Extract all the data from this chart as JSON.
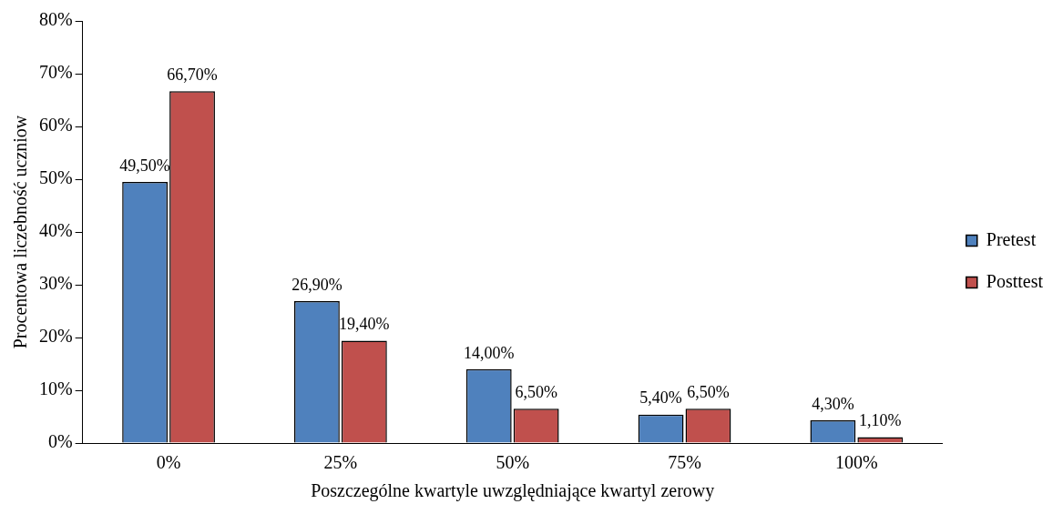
{
  "chart_data": {
    "type": "bar",
    "xlabel": "Poszczególne kwartyle uwzględniające kwartyl zerowy",
    "ylabel": "Procentowa liczebność uczniow",
    "categories": [
      "0%",
      "25%",
      "50%",
      "75%",
      "100%"
    ],
    "series": [
      {
        "name": "Pretest",
        "color": "#4f81bd",
        "values": [
          49.5,
          26.9,
          14.0,
          5.4,
          4.3
        ],
        "value_labels": [
          "49,50%",
          "26,90%",
          "14,00%",
          "5,40%",
          "4,30%"
        ]
      },
      {
        "name": "Posttest",
        "color": "#c0504d",
        "values": [
          66.7,
          19.4,
          6.5,
          6.5,
          1.1
        ],
        "value_labels": [
          "66,70%",
          "19,40%",
          "6,50%",
          "6,50%",
          "1,10%"
        ]
      }
    ],
    "ylim": [
      0,
      80
    ],
    "yticks": [
      {
        "value": 0,
        "label": "0%"
      },
      {
        "value": 10,
        "label": "10%"
      },
      {
        "value": 20,
        "label": "20%"
      },
      {
        "value": 30,
        "label": "30%"
      },
      {
        "value": 40,
        "label": "40%"
      },
      {
        "value": 50,
        "label": "50%"
      },
      {
        "value": 60,
        "label": "60%"
      },
      {
        "value": 70,
        "label": "70%"
      },
      {
        "value": 80,
        "label": "80%"
      }
    ],
    "grid": false,
    "legend": "right"
  }
}
